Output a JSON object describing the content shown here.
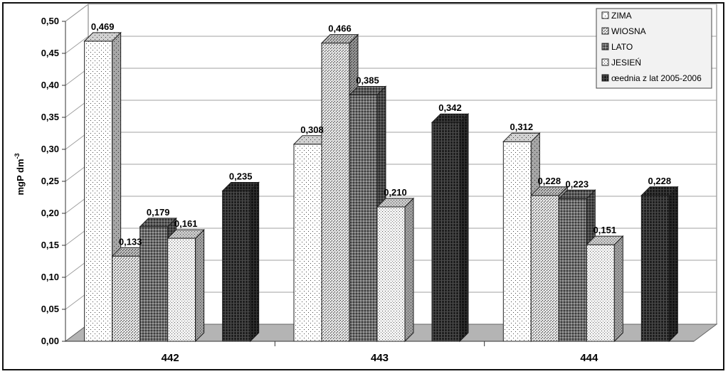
{
  "chart_data": {
    "type": "bar",
    "ylabel": "mgP dm",
    "ylabel_exponent": "-3",
    "categories": [
      "442",
      "443",
      "444"
    ],
    "series": [
      {
        "name": "ZIMA",
        "pattern": "dots-sparse",
        "values": [
          0.469,
          0.308,
          0.312
        ],
        "labels": [
          "0,469",
          "0,308",
          "0,312"
        ]
      },
      {
        "name": "WIOSNA",
        "pattern": "dots-diagonal",
        "values": [
          0.133,
          0.466,
          0.228
        ],
        "labels": [
          "0,133",
          "0,466",
          "0,228"
        ]
      },
      {
        "name": "LATO",
        "pattern": "grid-medium",
        "values": [
          0.179,
          0.385,
          0.223
        ],
        "labels": [
          "0,179",
          "0,385",
          "0,223"
        ]
      },
      {
        "name": "JESIEŃ",
        "pattern": "dots-fine",
        "values": [
          0.161,
          0.21,
          0.151
        ],
        "labels": [
          "0,161",
          "0,210",
          "0,151"
        ]
      },
      {
        "name": "œednia z lat 2005-2006",
        "pattern": "grid-dark",
        "values": [
          0.235,
          0.342,
          0.228
        ],
        "labels": [
          "0,235",
          "0,342",
          "0,228"
        ]
      }
    ],
    "ylim": [
      0,
      0.5
    ],
    "yticks": [
      "0,00",
      "0,05",
      "0,10",
      "0,15",
      "0,20",
      "0,25",
      "0,30",
      "0,35",
      "0,40",
      "0,45",
      "0,50"
    ],
    "grid": true,
    "legend_position": "top-right",
    "colors": {
      "floor": "#b4b4b4",
      "wall": "#ffffff",
      "gridline": "#a0a0a0"
    }
  }
}
